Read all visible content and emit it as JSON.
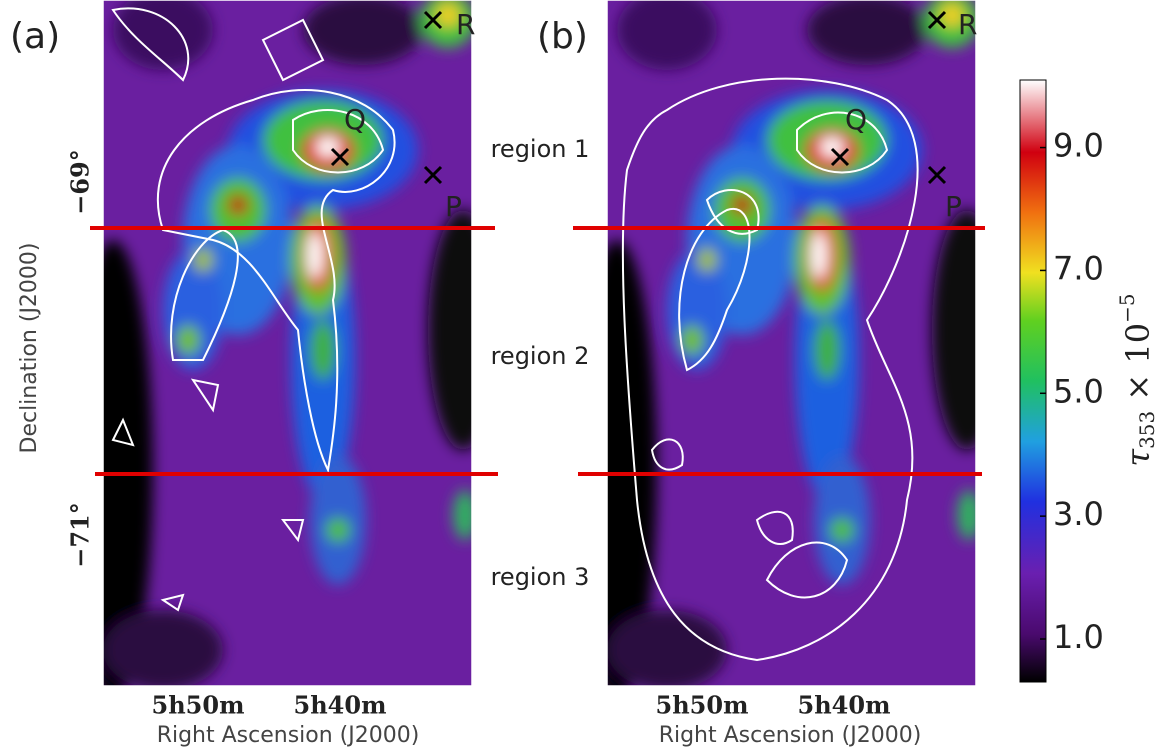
{
  "panels": [
    {
      "label": "(a)",
      "markers": [
        {
          "label": "Q"
        },
        {
          "label": "P"
        },
        {
          "label": "R"
        }
      ],
      "x_ticks": [
        "5h50m",
        "5h40m"
      ],
      "x_axis_label": "Right Ascension (J2000)"
    },
    {
      "label": "(b)",
      "markers": [
        {
          "label": "Q"
        },
        {
          "label": "P"
        },
        {
          "label": "R"
        }
      ],
      "x_ticks": [
        "5h50m",
        "5h40m"
      ],
      "x_axis_label": "Right Ascension (J2000)"
    }
  ],
  "y_axis_label": "Declination (J2000)",
  "y_ticks": [
    "−69°",
    "−71°"
  ],
  "regions": [
    "region 1",
    "region 2",
    "region 3"
  ],
  "colorbar": {
    "range": [
      0.3,
      10.1
    ],
    "ticks": [
      {
        "value": 1,
        "label": "1.0"
      },
      {
        "value": 3,
        "label": "3.0"
      },
      {
        "value": 5,
        "label": "5.0"
      },
      {
        "value": 7,
        "label": "7.0"
      },
      {
        "value": 9,
        "label": "9.0"
      }
    ],
    "label": {
      "symbol": "τ",
      "subscript": "353",
      "times": " × 10",
      "exponent": "−5"
    }
  }
}
